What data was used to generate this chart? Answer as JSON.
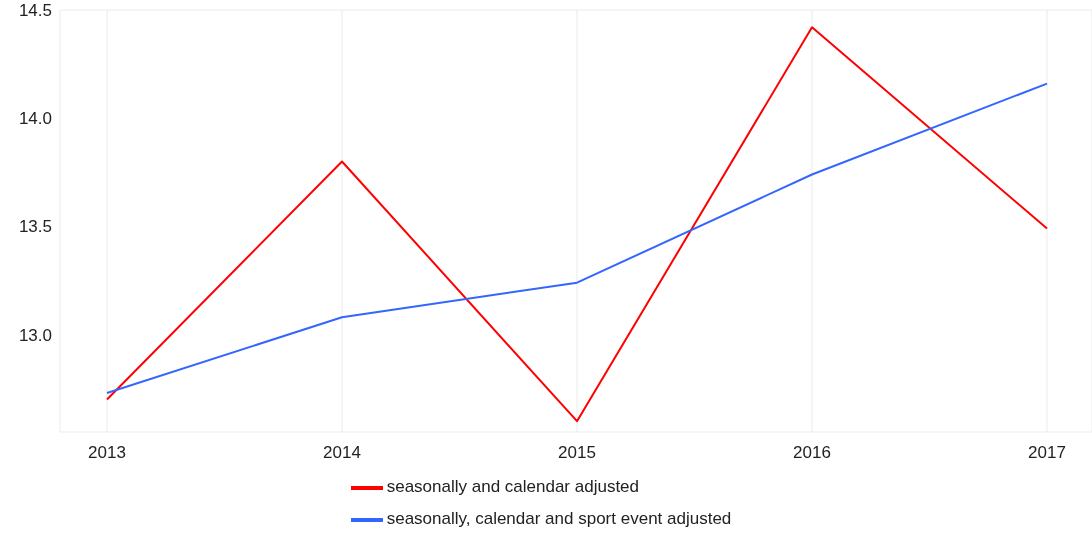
{
  "chart_data": {
    "type": "line",
    "categories": [
      "2013",
      "2014",
      "2015",
      "2016",
      "2017"
    ],
    "series": [
      {
        "name": "seasonally and calendar adjusted",
        "color": "#ff0000",
        "values": [
          12.7,
          13.8,
          12.6,
          14.42,
          13.49
        ]
      },
      {
        "name": "seasonally, calendar and sport event adjusted",
        "color": "#3366ff",
        "values": [
          12.73,
          13.08,
          13.24,
          13.74,
          14.16
        ]
      }
    ],
    "ylim": [
      12.55,
      14.5
    ],
    "yticks": [
      {
        "value": 13,
        "label": "13.0"
      },
      {
        "value": 13.5,
        "label": "13.5"
      },
      {
        "value": 14,
        "label": "14.0"
      },
      {
        "value": 14.5,
        "label": "14.5"
      }
    ],
    "grid": true,
    "legend": "bottom",
    "marker": "none",
    "line_style": "solid"
  }
}
